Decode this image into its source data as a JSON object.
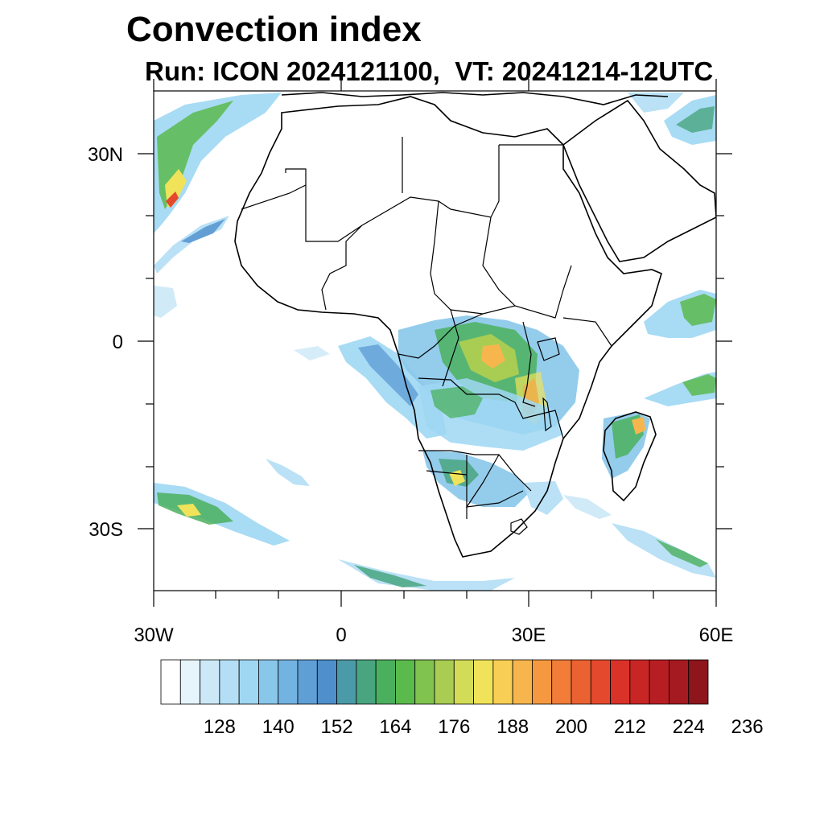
{
  "title": "Convection index",
  "subtitle": "Run: ICON 2024121100,  VT: 20241214-12UTC",
  "map": {
    "region": "Africa",
    "lon_range": [
      -30,
      60
    ],
    "lat_range": [
      -40,
      40
    ],
    "lon_ticks": [
      {
        "value": -30,
        "label": "30W"
      },
      {
        "value": 0,
        "label": "0"
      },
      {
        "value": 30,
        "label": "30E"
      },
      {
        "value": 60,
        "label": "60E"
      }
    ],
    "lat_ticks": [
      {
        "value": 30,
        "label": "30N"
      },
      {
        "value": 0,
        "label": "0"
      },
      {
        "value": -30,
        "label": "30S"
      }
    ],
    "coastline_color": "#000000",
    "background_color": "#ffffff"
  },
  "colorbar": {
    "colors": [
      "#ffffff",
      "#e6f4fc",
      "#cce8f7",
      "#b3def5",
      "#9fd7f3",
      "#88c7ea",
      "#73b3e2",
      "#5f9fd6",
      "#4e8fcc",
      "#4b9aa8",
      "#49a580",
      "#4bb05e",
      "#5bba4c",
      "#80c34e",
      "#a8cd52",
      "#d2dc57",
      "#f0e35a",
      "#f8cf54",
      "#f7b64d",
      "#f59940",
      "#f17d38",
      "#eb6232",
      "#e4492d",
      "#d93229",
      "#c82525",
      "#b71e23",
      "#a51a20",
      "#8e151c"
    ],
    "tick_labels": [
      "128",
      "140",
      "152",
      "164",
      "176",
      "188",
      "200",
      "212",
      "224",
      "236"
    ]
  }
}
